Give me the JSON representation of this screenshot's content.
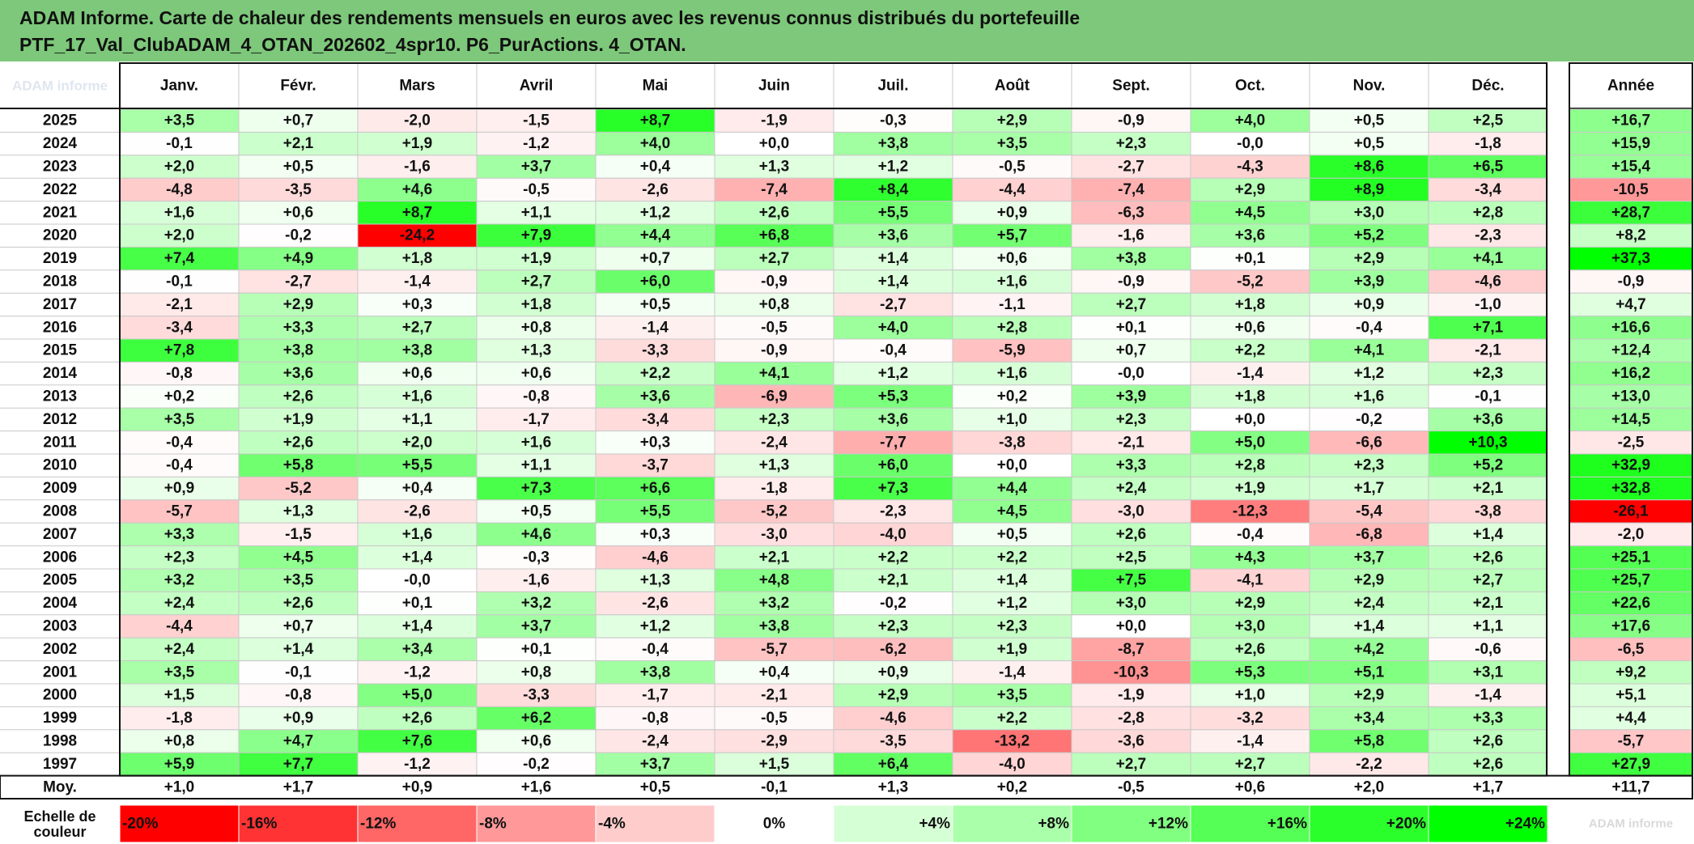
{
  "title": {
    "line1": "ADAM Informe. Carte de chaleur des rendements mensuels en euros avec les revenus connus distribués du portefeuille",
    "line2": "PTF_17_Val_ClubADAM_4_OTAN_202602_4spr10. P6_PurActions. 4_OTAN."
  },
  "corner_watermark": "ADAM informe",
  "legend_watermark": "ADAM informe",
  "colors": {
    "title_bg": "#7dc87a",
    "max_negative": "#ff0000",
    "max_positive": "#00ff00",
    "neutral": "#ffffff"
  },
  "chart_data": {
    "type": "heatmap",
    "columns": [
      "Janv.",
      "Févr.",
      "Mars",
      "Avril",
      "Mai",
      "Juin",
      "Juil.",
      "Août",
      "Sept.",
      "Oct.",
      "Nov.",
      "Déc."
    ],
    "year_column": "Année",
    "rows": [
      {
        "label": "2025",
        "values": [
          "+3,5",
          "+0,7",
          "-2,0",
          "-1,5",
          "+8,7",
          "-1,9",
          "-0,3",
          "+2,9",
          "-0,9",
          "+4,0",
          "+0,5",
          "+2,5"
        ],
        "year": "+16,7"
      },
      {
        "label": "2024",
        "values": [
          "-0,1",
          "+2,1",
          "+1,9",
          "-1,2",
          "+4,0",
          "+0,0",
          "+3,8",
          "+3,5",
          "+2,3",
          "-0,0",
          "+0,5",
          "-1,8"
        ],
        "year": "+15,9"
      },
      {
        "label": "2023",
        "values": [
          "+2,0",
          "+0,5",
          "-1,6",
          "+3,7",
          "+0,4",
          "+1,3",
          "+1,2",
          "-0,5",
          "-2,7",
          "-4,3",
          "+8,6",
          "+6,5"
        ],
        "year": "+15,4"
      },
      {
        "label": "2022",
        "values": [
          "-4,8",
          "-3,5",
          "+4,6",
          "-0,5",
          "-2,6",
          "-7,4",
          "+8,4",
          "-4,4",
          "-7,4",
          "+2,9",
          "+8,9",
          "-3,4"
        ],
        "year": "-10,5"
      },
      {
        "label": "2021",
        "values": [
          "+1,6",
          "+0,6",
          "+8,7",
          "+1,1",
          "+1,2",
          "+2,6",
          "+5,5",
          "+0,9",
          "-6,3",
          "+4,5",
          "+3,0",
          "+2,8"
        ],
        "year": "+28,7"
      },
      {
        "label": "2020",
        "values": [
          "+2,0",
          "-0,2",
          "-24,2",
          "+7,9",
          "+4,4",
          "+6,8",
          "+3,6",
          "+5,7",
          "-1,6",
          "+3,6",
          "+5,2",
          "-2,3"
        ],
        "year": "+8,2"
      },
      {
        "label": "2019",
        "values": [
          "+7,4",
          "+4,9",
          "+1,8",
          "+1,9",
          "+0,7",
          "+2,7",
          "+1,4",
          "+0,6",
          "+3,8",
          "+0,1",
          "+2,9",
          "+4,1"
        ],
        "year": "+37,3"
      },
      {
        "label": "2018",
        "values": [
          "-0,1",
          "-2,7",
          "-1,4",
          "+2,7",
          "+6,0",
          "-0,9",
          "+1,4",
          "+1,6",
          "-0,9",
          "-5,2",
          "+3,9",
          "-4,6"
        ],
        "year": "-0,9"
      },
      {
        "label": "2017",
        "values": [
          "-2,1",
          "+2,9",
          "+0,3",
          "+1,8",
          "+0,5",
          "+0,8",
          "-2,7",
          "-1,1",
          "+2,7",
          "+1,8",
          "+0,9",
          "-1,0"
        ],
        "year": "+4,7"
      },
      {
        "label": "2016",
        "values": [
          "-3,4",
          "+3,3",
          "+2,7",
          "+0,8",
          "-1,4",
          "-0,5",
          "+4,0",
          "+2,8",
          "+0,1",
          "+0,6",
          "-0,4",
          "+7,1"
        ],
        "year": "+16,6"
      },
      {
        "label": "2015",
        "values": [
          "+7,8",
          "+3,8",
          "+3,8",
          "+1,3",
          "-3,3",
          "-0,9",
          "-0,4",
          "-5,9",
          "+0,7",
          "+2,2",
          "+4,1",
          "-2,1"
        ],
        "year": "+12,4"
      },
      {
        "label": "2014",
        "values": [
          "-0,8",
          "+3,6",
          "+0,6",
          "+0,6",
          "+2,2",
          "+4,1",
          "+1,2",
          "+1,6",
          "-0,0",
          "-1,4",
          "+1,2",
          "+2,3"
        ],
        "year": "+16,2"
      },
      {
        "label": "2013",
        "values": [
          "+0,2",
          "+2,6",
          "+1,6",
          "-0,8",
          "+3,6",
          "-6,9",
          "+5,3",
          "+0,2",
          "+3,9",
          "+1,8",
          "+1,6",
          "-0,1"
        ],
        "year": "+13,0"
      },
      {
        "label": "2012",
        "values": [
          "+3,5",
          "+1,9",
          "+1,1",
          "-1,7",
          "-3,4",
          "+2,3",
          "+3,6",
          "+1,0",
          "+2,3",
          "+0,0",
          "-0,2",
          "+3,6"
        ],
        "year": "+14,5"
      },
      {
        "label": "2011",
        "values": [
          "-0,4",
          "+2,6",
          "+2,0",
          "+1,6",
          "+0,3",
          "-2,4",
          "-7,7",
          "-3,8",
          "-2,1",
          "+5,0",
          "-6,6",
          "+10,3"
        ],
        "year": "-2,5"
      },
      {
        "label": "2010",
        "values": [
          "-0,4",
          "+5,8",
          "+5,5",
          "+1,1",
          "-3,7",
          "+1,3",
          "+6,0",
          "+0,0",
          "+3,3",
          "+2,8",
          "+2,3",
          "+5,2"
        ],
        "year": "+32,9"
      },
      {
        "label": "2009",
        "values": [
          "+0,9",
          "-5,2",
          "+0,4",
          "+7,3",
          "+6,6",
          "-1,8",
          "+7,3",
          "+4,4",
          "+2,4",
          "+1,9",
          "+1,7",
          "+2,1"
        ],
        "year": "+32,8"
      },
      {
        "label": "2008",
        "values": [
          "-5,7",
          "+1,3",
          "-2,6",
          "+0,5",
          "+5,5",
          "-5,2",
          "-2,3",
          "+4,5",
          "-3,0",
          "-12,3",
          "-5,4",
          "-3,8"
        ],
        "year": "-26,1"
      },
      {
        "label": "2007",
        "values": [
          "+3,3",
          "-1,5",
          "+1,6",
          "+4,6",
          "+0,3",
          "-3,0",
          "-4,0",
          "+0,5",
          "+2,6",
          "-0,4",
          "-6,8",
          "+1,4"
        ],
        "year": "-2,0"
      },
      {
        "label": "2006",
        "values": [
          "+2,3",
          "+4,5",
          "+1,4",
          "-0,3",
          "-4,6",
          "+2,1",
          "+2,2",
          "+2,2",
          "+2,5",
          "+4,3",
          "+3,7",
          "+2,6"
        ],
        "year": "+25,1"
      },
      {
        "label": "2005",
        "values": [
          "+3,2",
          "+3,5",
          "-0,0",
          "-1,6",
          "+1,3",
          "+4,8",
          "+2,1",
          "+1,4",
          "+7,5",
          "-4,1",
          "+2,9",
          "+2,7"
        ],
        "year": "+25,7"
      },
      {
        "label": "2004",
        "values": [
          "+2,4",
          "+2,6",
          "+0,1",
          "+3,2",
          "-2,6",
          "+3,2",
          "-0,2",
          "+1,2",
          "+3,0",
          "+2,9",
          "+2,4",
          "+2,1"
        ],
        "year": "+22,6"
      },
      {
        "label": "2003",
        "values": [
          "-4,4",
          "+0,7",
          "+1,4",
          "+3,7",
          "+1,2",
          "+3,8",
          "+2,3",
          "+2,3",
          "+0,0",
          "+3,0",
          "+1,4",
          "+1,1"
        ],
        "year": "+17,6"
      },
      {
        "label": "2002",
        "values": [
          "+2,4",
          "+1,4",
          "+3,4",
          "+0,1",
          "-0,4",
          "-5,7",
          "-6,2",
          "+1,9",
          "-8,7",
          "+2,6",
          "+4,2",
          "-0,6"
        ],
        "year": "-6,5"
      },
      {
        "label": "2001",
        "values": [
          "+3,5",
          "-0,1",
          "-1,2",
          "+0,8",
          "+3,8",
          "+0,4",
          "+0,9",
          "-1,4",
          "-10,3",
          "+5,3",
          "+5,1",
          "+3,1"
        ],
        "year": "+9,2"
      },
      {
        "label": "2000",
        "values": [
          "+1,5",
          "-0,8",
          "+5,0",
          "-3,3",
          "-1,7",
          "-2,1",
          "+2,9",
          "+3,5",
          "-1,9",
          "+1,0",
          "+2,9",
          "-1,4"
        ],
        "year": "+5,1"
      },
      {
        "label": "1999",
        "values": [
          "-1,8",
          "+0,9",
          "+2,6",
          "+6,2",
          "-0,8",
          "-0,5",
          "-4,6",
          "+2,2",
          "-2,8",
          "-3,2",
          "+3,4",
          "+3,3"
        ],
        "year": "+4,4"
      },
      {
        "label": "1998",
        "values": [
          "+0,8",
          "+4,7",
          "+7,6",
          "+0,6",
          "-2,4",
          "-2,9",
          "-3,5",
          "-13,2",
          "-3,6",
          "-1,4",
          "+5,8",
          "+2,6"
        ],
        "year": "-5,7"
      },
      {
        "label": "1997",
        "values": [
          "+5,9",
          "+7,7",
          "-1,2",
          "-0,2",
          "+3,7",
          "+1,5",
          "+6,4",
          "-4,0",
          "+2,7",
          "+2,7",
          "-2,2",
          "+2,6"
        ],
        "year": "+27,9"
      }
    ],
    "average": {
      "label": "Moy.",
      "values": [
        "+1,0",
        "+1,7",
        "+0,9",
        "+1,6",
        "+0,5",
        "-0,1",
        "+1,3",
        "+0,2",
        "-0,5",
        "+0,6",
        "+2,0",
        "+1,7"
      ],
      "year": "+11,7"
    },
    "color_scale": {
      "label_line1": "Echelle de",
      "label_line2": "couleur",
      "stops": [
        "-20%",
        "-16%",
        "-12%",
        "-8%",
        "-4%",
        "0%",
        "+4%",
        "+8%",
        "+12%",
        "+16%",
        "+20%",
        "+24%"
      ],
      "stop_values": [
        -20,
        -16,
        -12,
        -8,
        -4,
        0,
        4,
        8,
        12,
        16,
        20,
        24
      ]
    },
    "monthly_color_range": [
      -24.2,
      10.3
    ],
    "year_color_range": [
      -26.1,
      37.3
    ]
  }
}
